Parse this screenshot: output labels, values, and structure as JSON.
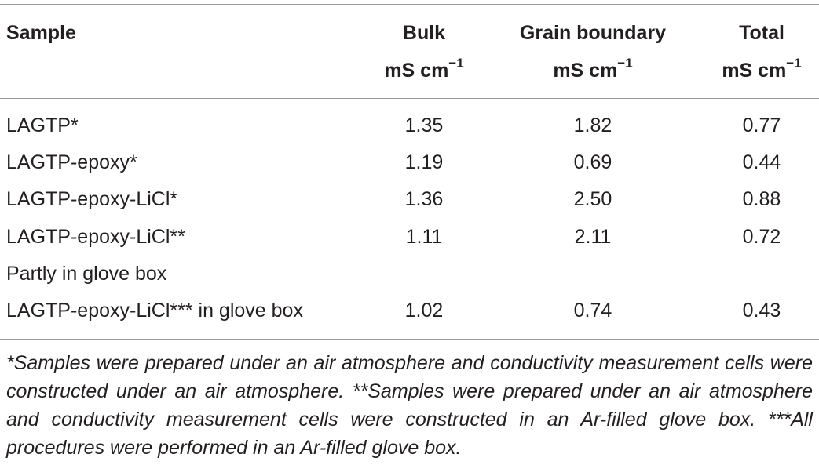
{
  "table": {
    "header": [
      "Sample",
      "Bulk",
      "Grain boundary",
      "Total"
    ],
    "units": [
      null,
      {
        "text": "mS cm",
        "sup": "−1"
      },
      {
        "text": "mS cm",
        "sup": "−1"
      },
      {
        "text": "mS cm",
        "sup": "−1"
      }
    ],
    "rows": [
      [
        "LAGTP*",
        "1.35",
        "1.82",
        "0.77"
      ],
      [
        "LAGTP-epoxy*",
        "1.19",
        "0.69",
        "0.44"
      ],
      [
        "LAGTP-epoxy-LiCl*",
        "1.36",
        "2.50",
        "0.88"
      ],
      [
        "LAGTP-epoxy-LiCl**",
        "1.11",
        "2.11",
        "0.72"
      ],
      [
        "Partly in glove box"
      ],
      [
        "LAGTP-epoxy-LiCl*** in glove box",
        "1.02",
        "0.74",
        "0.43"
      ]
    ],
    "footnote": "*Samples were prepared under an air atmosphere and conductivity measurement cells were constructed under an air atmosphere. **Samples were prepared under an air atmosphere and conductivity measurement cells were constructed in an Ar-filled glove box. ***All procedures were performed in an Ar-filled glove box."
  }
}
